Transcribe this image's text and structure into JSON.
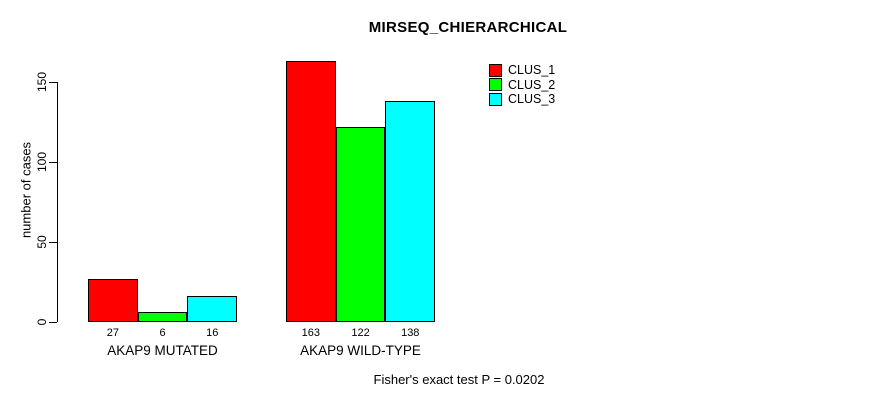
{
  "chart_data": {
    "type": "bar",
    "title": "MIRSEQ_CHIERARCHICAL",
    "xlabel": "",
    "ylabel": "number of cases",
    "yticks": [
      0,
      50,
      100,
      150
    ],
    "ylim": [
      0,
      163
    ],
    "grid": false,
    "legend_position": "top-right",
    "categories": [
      "AKAP9 MUTATED",
      "AKAP9 WILD-TYPE"
    ],
    "series": [
      {
        "name": "CLUS_1",
        "color": "#ff0000",
        "values": [
          27,
          163
        ]
      },
      {
        "name": "CLUS_2",
        "color": "#00ff00",
        "values": [
          6,
          122
        ]
      },
      {
        "name": "CLUS_3",
        "color": "#00ffff",
        "values": [
          16,
          138
        ]
      }
    ],
    "bar_value_labels": [
      [
        "27",
        "6",
        "16"
      ],
      [
        "163",
        "122",
        "138"
      ]
    ],
    "annotation": "Fisher's exact test P = 0.0202"
  },
  "colors": {
    "background": "#ffffff",
    "axis": "#000000",
    "text": "#000000"
  }
}
